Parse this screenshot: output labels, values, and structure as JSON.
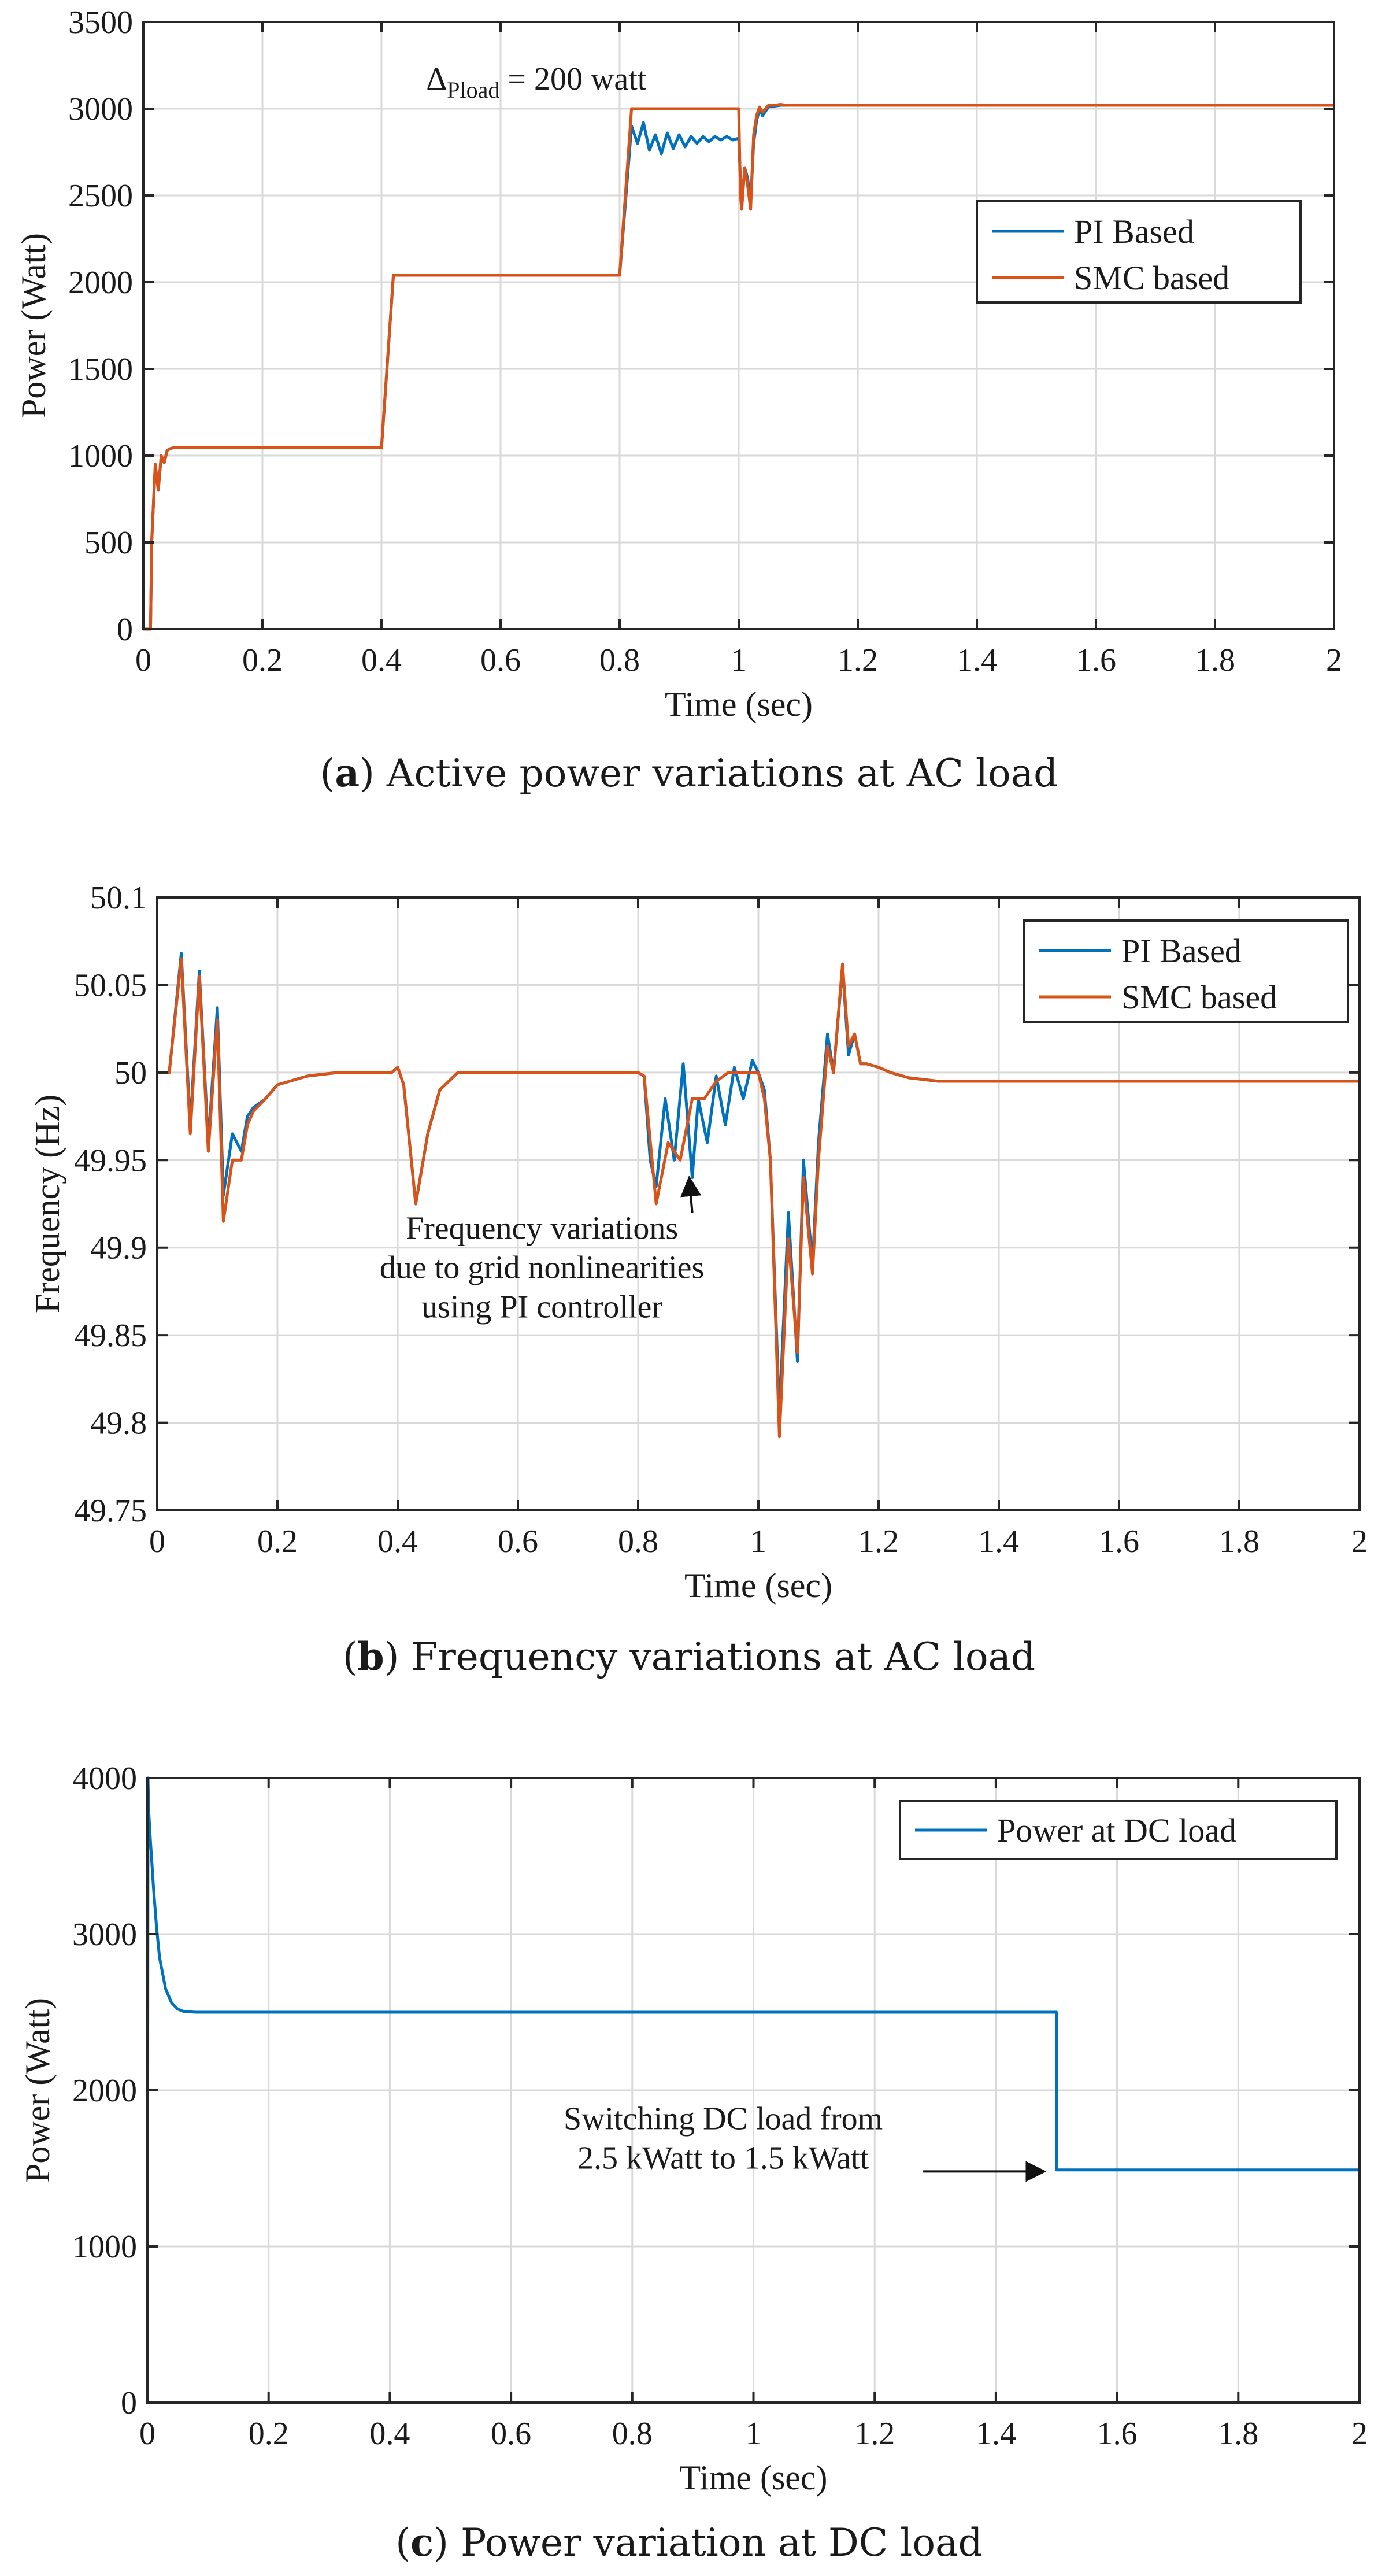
{
  "chart_data": [
    {
      "id": "a",
      "type": "line",
      "caption_label": "a",
      "caption": "Active power variations at AC load",
      "xlabel": "Time (sec)",
      "ylabel": "Power (Watt)",
      "xlim": [
        0,
        2
      ],
      "ylim": [
        0,
        3500
      ],
      "xticks": [
        0,
        0.2,
        0.4,
        0.6,
        0.8,
        1,
        1.2,
        1.4,
        1.6,
        1.8,
        2
      ],
      "yticks": [
        0,
        500,
        1000,
        1500,
        2000,
        2500,
        3000,
        3500
      ],
      "xtick_labels": [
        "0",
        "0.2",
        "0.4",
        "0.6",
        "0.8",
        "1",
        "1.2",
        "1.4",
        "1.6",
        "1.8",
        "2"
      ],
      "ytick_labels": [
        "0",
        "500",
        "1000",
        "1500",
        "2000",
        "2500",
        "3000",
        "3500"
      ],
      "grid": true,
      "legend_position": "top-right",
      "annotations": [
        {
          "text_main": "Δ",
          "text_sub": "Pload",
          "text_rest": " = 200 watt",
          "x": 0.66,
          "y": 3110
        }
      ],
      "series": [
        {
          "name": "PI Based",
          "color": "#0072BD",
          "x": [
            0,
            0.012,
            0.014,
            0.02,
            0.025,
            0.03,
            0.035,
            0.04,
            0.045,
            0.05,
            0.06,
            0.1,
            0.4,
            0.42,
            0.8,
            0.82,
            0.83,
            0.84,
            0.85,
            0.86,
            0.87,
            0.88,
            0.89,
            0.9,
            0.91,
            0.92,
            0.93,
            0.94,
            0.95,
            0.96,
            0.97,
            0.98,
            0.99,
            1.0,
            1.005,
            1.01,
            1.015,
            1.02,
            1.025,
            1.03,
            1.035,
            1.04,
            1.05,
            1.06,
            1.07,
            1.08,
            1.1,
            1.5,
            2.0
          ],
          "y": [
            0,
            0,
            500,
            950,
            800,
            1000,
            960,
            1030,
            1040,
            1045,
            1045,
            1045,
            1045,
            2040,
            2040,
            2900,
            2800,
            2920,
            2760,
            2850,
            2740,
            2860,
            2770,
            2850,
            2780,
            2840,
            2800,
            2840,
            2810,
            2840,
            2820,
            2840,
            2820,
            2830,
            2420,
            2660,
            2600,
            2460,
            2800,
            2930,
            3000,
            2960,
            3010,
            3015,
            3020,
            3020,
            3020,
            3020,
            3020
          ]
        },
        {
          "name": "SMC based",
          "color": "#D95319",
          "x": [
            0,
            0.012,
            0.014,
            0.02,
            0.025,
            0.03,
            0.035,
            0.04,
            0.045,
            0.05,
            0.06,
            0.1,
            0.4,
            0.42,
            0.8,
            0.82,
            0.83,
            1.0,
            1.003,
            1.005,
            1.01,
            1.015,
            1.02,
            1.025,
            1.03,
            1.035,
            1.04,
            1.05,
            1.06,
            1.07,
            1.08,
            1.1,
            1.5,
            2.0
          ],
          "y": [
            0,
            0,
            500,
            950,
            800,
            1000,
            960,
            1030,
            1040,
            1045,
            1045,
            1045,
            1045,
            2040,
            2040,
            3000,
            3000,
            3000,
            2500,
            2420,
            2660,
            2560,
            2420,
            2850,
            2960,
            3010,
            2980,
            3020,
            3020,
            3025,
            3020,
            3020,
            3020,
            3020
          ]
        }
      ]
    },
    {
      "id": "b",
      "type": "line",
      "caption_label": "b",
      "caption": "Frequency variations at AC load",
      "xlabel": "Time (sec)",
      "ylabel": "Frequency (Hz)",
      "xlim": [
        0,
        2
      ],
      "ylim": [
        49.75,
        50.1
      ],
      "xticks": [
        0,
        0.2,
        0.4,
        0.6,
        0.8,
        1,
        1.2,
        1.4,
        1.6,
        1.8,
        2
      ],
      "yticks": [
        49.75,
        49.8,
        49.85,
        49.9,
        49.95,
        50,
        50.05,
        50.1
      ],
      "xtick_labels": [
        "0",
        "0.2",
        "0.4",
        "0.6",
        "0.8",
        "1",
        "1.2",
        "1.4",
        "1.6",
        "1.8",
        "2"
      ],
      "ytick_labels": [
        "49.75",
        "49.8",
        "49.85",
        "49.9",
        "49.95",
        "50",
        "50.05",
        "50.1"
      ],
      "grid": true,
      "legend_position": "top-right",
      "annotations": [
        {
          "lines": [
            "Frequency variations",
            "due to grid nonlinearities",
            "using PI controller"
          ],
          "x": 0.64,
          "y": 49.905,
          "arrow_from": [
            0.89,
            49.92
          ],
          "arrow_to": [
            0.885,
            49.94
          ]
        }
      ],
      "series": [
        {
          "name": "PI Based",
          "color": "#0072BD",
          "x": [
            0,
            0.02,
            0.04,
            0.055,
            0.07,
            0.085,
            0.1,
            0.11,
            0.125,
            0.14,
            0.15,
            0.16,
            0.18,
            0.2,
            0.22,
            0.25,
            0.3,
            0.39,
            0.4,
            0.41,
            0.43,
            0.45,
            0.47,
            0.5,
            0.55,
            0.6,
            0.7,
            0.8,
            0.81,
            0.82,
            0.83,
            0.845,
            0.86,
            0.875,
            0.89,
            0.9,
            0.915,
            0.93,
            0.945,
            0.96,
            0.975,
            0.99,
            1.0,
            1.01,
            1.02,
            1.035,
            1.05,
            1.065,
            1.075,
            1.09,
            1.1,
            1.115,
            1.125,
            1.14,
            1.15,
            1.16,
            1.17,
            1.18,
            1.2,
            1.22,
            1.25,
            1.3,
            1.4,
            2.0
          ],
          "y": [
            50.0,
            50.0,
            50.068,
            49.97,
            50.058,
            49.96,
            50.037,
            49.93,
            49.965,
            49.955,
            49.975,
            49.98,
            49.985,
            49.993,
            49.995,
            49.998,
            50.0,
            50.0,
            50.003,
            49.993,
            49.925,
            49.965,
            49.99,
            50.0,
            50.0,
            50.0,
            50.0,
            50.0,
            49.998,
            49.95,
            49.935,
            49.985,
            49.95,
            50.005,
            49.94,
            49.985,
            49.96,
            49.998,
            49.97,
            50.003,
            49.985,
            50.007,
            50.0,
            49.99,
            49.95,
            49.805,
            49.92,
            49.835,
            49.95,
            49.89,
            49.96,
            50.022,
            50.0,
            50.06,
            50.01,
            50.022,
            50.005,
            50.005,
            50.003,
            50.0,
            49.997,
            49.995,
            49.995,
            49.995
          ]
        },
        {
          "name": "SMC based",
          "color": "#D95319",
          "x": [
            0,
            0.02,
            0.04,
            0.055,
            0.07,
            0.085,
            0.1,
            0.11,
            0.125,
            0.14,
            0.15,
            0.16,
            0.18,
            0.2,
            0.22,
            0.25,
            0.3,
            0.39,
            0.4,
            0.41,
            0.43,
            0.45,
            0.47,
            0.5,
            0.55,
            0.6,
            0.7,
            0.8,
            0.81,
            0.83,
            0.85,
            0.87,
            0.89,
            0.91,
            0.93,
            0.95,
            0.97,
            0.99,
            1.0,
            1.01,
            1.02,
            1.035,
            1.05,
            1.065,
            1.075,
            1.09,
            1.1,
            1.115,
            1.125,
            1.14,
            1.15,
            1.16,
            1.17,
            1.18,
            1.2,
            1.22,
            1.25,
            1.3,
            1.4,
            2.0
          ],
          "y": [
            50.0,
            50.0,
            50.065,
            49.965,
            50.055,
            49.955,
            50.03,
            49.915,
            49.95,
            49.95,
            49.97,
            49.978,
            49.985,
            49.993,
            49.995,
            49.998,
            50.0,
            50.0,
            50.003,
            49.993,
            49.925,
            49.965,
            49.99,
            50.0,
            50.0,
            50.0,
            50.0,
            50.0,
            49.998,
            49.925,
            49.96,
            49.95,
            49.985,
            49.985,
            49.995,
            50.0,
            50.0,
            50.0,
            50.0,
            49.985,
            49.95,
            49.792,
            49.905,
            49.84,
            49.94,
            49.885,
            49.95,
            50.015,
            50.0,
            50.062,
            50.015,
            50.022,
            50.005,
            50.005,
            50.003,
            50.0,
            49.997,
            49.995,
            49.995,
            49.995
          ]
        }
      ]
    },
    {
      "id": "c",
      "type": "line",
      "caption_label": "c",
      "caption": "Power variation at DC load",
      "xlabel": "Time (sec)",
      "ylabel": "Power (Watt)",
      "xlim": [
        0,
        2
      ],
      "ylim": [
        0,
        4000
      ],
      "xticks": [
        0,
        0.2,
        0.4,
        0.6,
        0.8,
        1,
        1.2,
        1.4,
        1.6,
        1.8,
        2
      ],
      "yticks": [
        0,
        1000,
        2000,
        3000,
        4000
      ],
      "xtick_labels": [
        "0",
        "0.2",
        "0.4",
        "0.6",
        "0.8",
        "1",
        "1.2",
        "1.4",
        "1.6",
        "1.8",
        "2"
      ],
      "ytick_labels": [
        "0",
        "1000",
        "2000",
        "3000",
        "4000"
      ],
      "grid": true,
      "legend_position": "top-right",
      "annotations": [
        {
          "lines": [
            "Switching DC load from",
            "2.5 kWatt to 1.5 kWatt"
          ],
          "x": 0.95,
          "y": 1750,
          "arrow_from": [
            1.28,
            1480
          ],
          "arrow_to": [
            1.48,
            1480
          ]
        }
      ],
      "series": [
        {
          "name": "Power at DC load",
          "color": "#0072BD",
          "x": [
            0,
            0.001,
            0.002,
            0.005,
            0.01,
            0.015,
            0.02,
            0.03,
            0.04,
            0.05,
            0.06,
            0.08,
            0.1,
            0.5,
            1.0,
            1.5,
            1.5,
            2.0
          ],
          "y": [
            0,
            4000,
            3800,
            3600,
            3300,
            3050,
            2850,
            2650,
            2560,
            2520,
            2505,
            2500,
            2500,
            2500,
            2500,
            2500,
            1490,
            1490
          ]
        }
      ]
    }
  ]
}
